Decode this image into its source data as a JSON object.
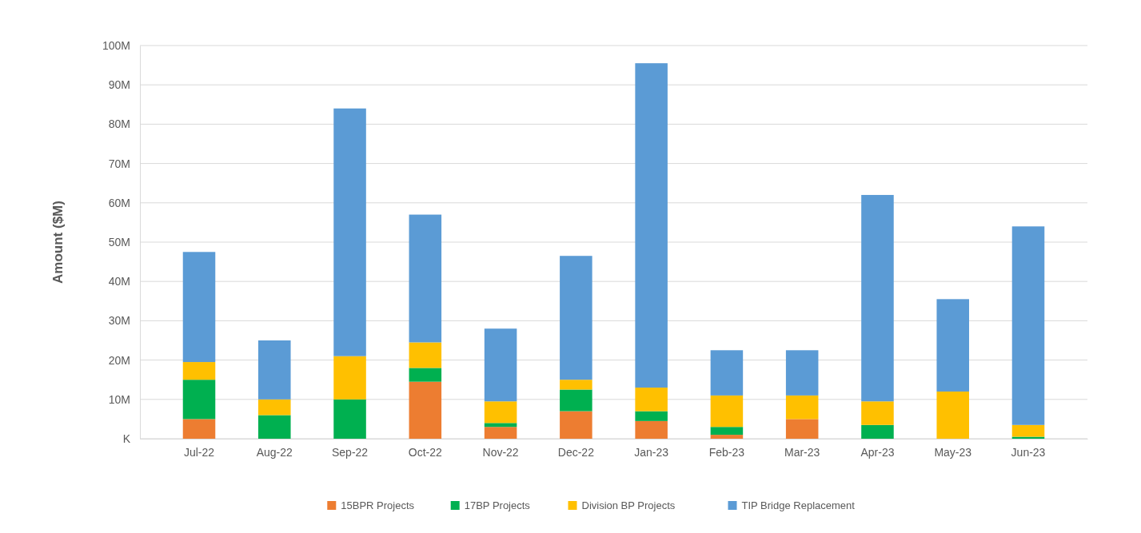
{
  "chart_data": {
    "type": "bar",
    "stacked": true,
    "ylabel": "Amount ($M)",
    "categories": [
      "Jul-22",
      "Aug-22",
      "Sep-22",
      "Oct-22",
      "Nov-22",
      "Dec-22",
      "Jan-23",
      "Feb-23",
      "Mar-23",
      "Apr-23",
      "May-23",
      "Jun-23"
    ],
    "series": [
      {
        "name": "15BPR Projects",
        "color": "#ed7d31",
        "values": [
          5,
          0,
          0,
          14.5,
          3,
          7,
          4.5,
          1,
          5,
          0,
          0,
          0
        ]
      },
      {
        "name": "17BP Projects",
        "color": "#00b050",
        "values": [
          10,
          6,
          10,
          3.5,
          1,
          5.5,
          2.5,
          2,
          0,
          3.5,
          0,
          0.5
        ]
      },
      {
        "name": "Division BP Projects",
        "color": "#ffc000",
        "values": [
          4.5,
          4,
          11,
          6.5,
          5.5,
          2.5,
          6,
          8,
          6,
          6,
          12,
          3
        ]
      },
      {
        "name": "TIP Bridge Replacement",
        "color": "#5b9bd5",
        "values": [
          28,
          15,
          63,
          32.5,
          18.5,
          31.5,
          82.5,
          11.5,
          11.5,
          52.5,
          23.5,
          50.5
        ]
      }
    ],
    "ylim": [
      0,
      100
    ],
    "yticks": [
      {
        "value": 0,
        "label": "K"
      },
      {
        "value": 10,
        "label": "10M"
      },
      {
        "value": 20,
        "label": "20M"
      },
      {
        "value": 30,
        "label": "30M"
      },
      {
        "value": 40,
        "label": "40M"
      },
      {
        "value": 50,
        "label": "50M"
      },
      {
        "value": 60,
        "label": "60M"
      },
      {
        "value": 70,
        "label": "70M"
      },
      {
        "value": 80,
        "label": "80M"
      },
      {
        "value": 90,
        "label": "90M"
      },
      {
        "value": 100,
        "label": "100M"
      }
    ],
    "grid": "y",
    "legend": "bottom"
  }
}
